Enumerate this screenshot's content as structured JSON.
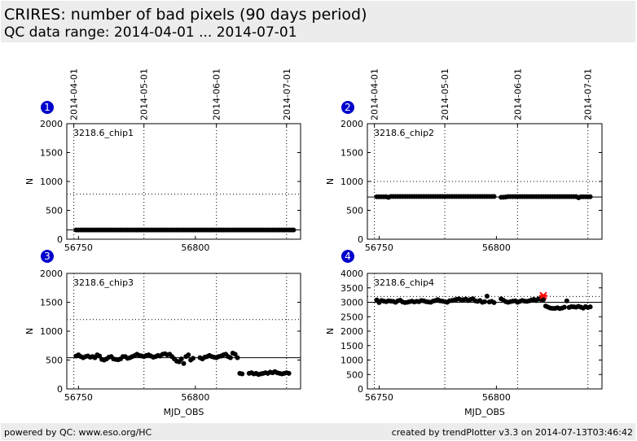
{
  "header": {
    "title": "CRIRES: number of bad pixels (90 days period)",
    "subtitle": "QC data range: 2014-04-01 ... 2014-07-01"
  },
  "footer": {
    "left": "powered by QC: www.eso.org/HC",
    "right": "created by trendPlotter v3.3 on 2014-07-13T03:46:42"
  },
  "top_dates": [
    "2014-04-01",
    "2014-05-01",
    "2014-06-01",
    "2014-07-01"
  ],
  "colors": {
    "points": "#000000",
    "outlier": "#ff0000",
    "badge": "#0000cc"
  },
  "chart_data": [
    {
      "type": "scatter",
      "badge": "1",
      "label": "3218.6_chip1",
      "ylabel": "N",
      "xlabel": "",
      "xlim": [
        56745,
        56845
      ],
      "ylim": [
        0,
        2000
      ],
      "yticks": [
        0,
        500,
        1000,
        1500,
        2000
      ],
      "xticks": [
        56750,
        56800
      ],
      "date_lines_mjd": [
        56748,
        56778,
        56809,
        56839
      ],
      "ref_line": 160,
      "threshold_line": 780,
      "series": [
        {
          "segments": [
            {
              "x": [
                56749,
                56757
              ],
              "y": [
                160,
                160
              ]
            },
            {
              "x": [
                56758,
                56796
              ],
              "y": [
                160,
                160
              ]
            },
            {
              "x": [
                56797,
                56816
              ],
              "y": [
                160,
                160
              ]
            },
            {
              "x": [
                56817,
                56842
              ],
              "y": [
                160,
                160
              ]
            }
          ]
        }
      ],
      "outliers": []
    },
    {
      "type": "scatter",
      "badge": "2",
      "label": "3218.6_chip2",
      "ylabel": "N",
      "xlabel": "",
      "xlim": [
        56745,
        56845
      ],
      "ylim": [
        0,
        2000
      ],
      "yticks": [
        0,
        500,
        1000,
        1500,
        2000
      ],
      "xticks": [
        56750,
        56800
      ],
      "date_lines_mjd": [
        56748,
        56778,
        56809,
        56839
      ],
      "ref_line": 730,
      "threshold_line": 1000,
      "series": [
        {
          "segments": [
            {
              "x": [
                56749,
                56753
              ],
              "y": [
                735,
                735
              ]
            },
            {
              "x": [
                56754,
                56754
              ],
              "y": [
                725,
                725
              ]
            },
            {
              "x": [
                56755,
                56799
              ],
              "y": [
                740,
                740
              ]
            },
            {
              "x": [
                56802,
                56804
              ],
              "y": [
                725,
                730
              ]
            },
            {
              "x": [
                56805,
                56834
              ],
              "y": [
                738,
                738
              ]
            },
            {
              "x": [
                56835,
                56835
              ],
              "y": [
                720,
                720
              ]
            },
            {
              "x": [
                56836,
                56840
              ],
              "y": [
                735,
                735
              ]
            }
          ]
        }
      ],
      "outliers": []
    },
    {
      "type": "scatter",
      "badge": "3",
      "label": "3218.6_chip3",
      "ylabel": "N",
      "xlabel": "MJD_OBS",
      "xlim": [
        56745,
        56845
      ],
      "ylim": [
        0,
        2000
      ],
      "yticks": [
        0,
        500,
        1000,
        1500,
        2000
      ],
      "xticks": [
        56750,
        56800
      ],
      "date_lines_mjd": [
        56748,
        56778,
        56809,
        56839
      ],
      "ref_line": 540,
      "threshold_line": 1200,
      "series": [
        {
          "x": [
            56749,
            56750,
            56751,
            56752,
            56753,
            56754,
            56755,
            56756,
            56757,
            56758,
            56759,
            56760,
            56761,
            56762,
            56763,
            56764,
            56765,
            56766,
            56767,
            56768,
            56769,
            56770,
            56771,
            56772,
            56773,
            56774,
            56775,
            56776,
            56777,
            56778,
            56779,
            56780,
            56781,
            56782,
            56783,
            56784,
            56785,
            56786,
            56787,
            56788,
            56789,
            56790,
            56791,
            56792,
            56793,
            56794,
            56795,
            56796,
            56797,
            56798,
            56799,
            56802,
            56803,
            56804,
            56805,
            56806,
            56807,
            56808,
            56809,
            56810,
            56811,
            56812,
            56813,
            56814,
            56815,
            56816,
            56817,
            56818,
            56819,
            56820,
            56823,
            56824,
            56825,
            56826,
            56827,
            56828,
            56829,
            56830,
            56831,
            56832,
            56833,
            56834,
            56835,
            56836,
            56837,
            56838,
            56839,
            56840
          ],
          "y": [
            570,
            590,
            560,
            540,
            560,
            570,
            550,
            560,
            540,
            590,
            570,
            510,
            500,
            520,
            550,
            560,
            520,
            510,
            505,
            520,
            560,
            560,
            530,
            540,
            560,
            575,
            600,
            580,
            570,
            560,
            580,
            590,
            570,
            550,
            560,
            580,
            570,
            600,
            610,
            590,
            600,
            560,
            520,
            480,
            470,
            520,
            440,
            560,
            590,
            500,
            530,
            540,
            520,
            550,
            560,
            580,
            560,
            550,
            540,
            560,
            570,
            590,
            600,
            560,
            540,
            620,
            600,
            540,
            270,
            260,
            270,
            280,
            260,
            270,
            250,
            260,
            270,
            280,
            270,
            290,
            280,
            300,
            280,
            270,
            260,
            270,
            280,
            270
          ]
        }
      ],
      "outliers": []
    },
    {
      "type": "scatter",
      "badge": "4",
      "label": "3218.6_chip4",
      "ylabel": "N",
      "xlabel": "MJD_OBS",
      "xlim": [
        56745,
        56845
      ],
      "ylim": [
        0,
        4000
      ],
      "yticks": [
        0,
        500,
        1000,
        1500,
        2000,
        2500,
        3000,
        3500,
        4000
      ],
      "xticks": [
        56750,
        56800
      ],
      "date_lines_mjd": [
        56748,
        56778,
        56809,
        56839
      ],
      "ref_line": 3000,
      "threshold_line": 3200,
      "series": [
        {
          "x": [
            56749,
            56750,
            56751,
            56752,
            56753,
            56754,
            56755,
            56756,
            56757,
            56758,
            56759,
            56760,
            56761,
            56762,
            56763,
            56764,
            56765,
            56766,
            56767,
            56768,
            56769,
            56770,
            56771,
            56772,
            56773,
            56774,
            56775,
            56776,
            56777,
            56778,
            56779,
            56780,
            56781,
            56782,
            56783,
            56784,
            56785,
            56786,
            56787,
            56788,
            56789,
            56790,
            56791,
            56792,
            56793,
            56794,
            56795,
            56796,
            56797,
            56798,
            56799,
            56802,
            56803,
            56804,
            56805,
            56806,
            56807,
            56808,
            56809,
            56810,
            56811,
            56812,
            56813,
            56814,
            56815,
            56816,
            56817,
            56818,
            56819,
            56820,
            56821,
            56822,
            56823,
            56824,
            56825,
            56826,
            56827,
            56828,
            56829,
            56830,
            56831,
            56832,
            56833,
            56834,
            56835,
            56836,
            56837,
            56838,
            56839,
            56840
          ],
          "y": [
            3080,
            2990,
            3060,
            3040,
            3020,
            3050,
            3040,
            3030,
            3000,
            3050,
            3070,
            3010,
            2990,
            3000,
            3020,
            3040,
            3010,
            3030,
            3020,
            3060,
            3050,
            3020,
            3010,
            3000,
            3040,
            3060,
            3090,
            3050,
            3040,
            3020,
            3000,
            3050,
            3060,
            3080,
            3100,
            3120,
            3080,
            3090,
            3110,
            3060,
            3100,
            3120,
            3050,
            3030,
            3060,
            3000,
            3020,
            3210,
            3010,
            3030,
            2990,
            3120,
            3070,
            3020,
            3000,
            3020,
            3040,
            3050,
            3000,
            3030,
            3060,
            3040,
            3030,
            3050,
            3080,
            3100,
            3060,
            3120,
            3100,
            3090,
            2870,
            2830,
            2800,
            2790,
            2790,
            2810,
            2780,
            2800,
            2830,
            3050,
            2820,
            2850,
            2840,
            2830,
            2860,
            2830,
            2800,
            2850,
            2820,
            2840
          ]
        }
      ],
      "outliers": [
        {
          "x": 56820,
          "y": 3230
        }
      ]
    }
  ]
}
